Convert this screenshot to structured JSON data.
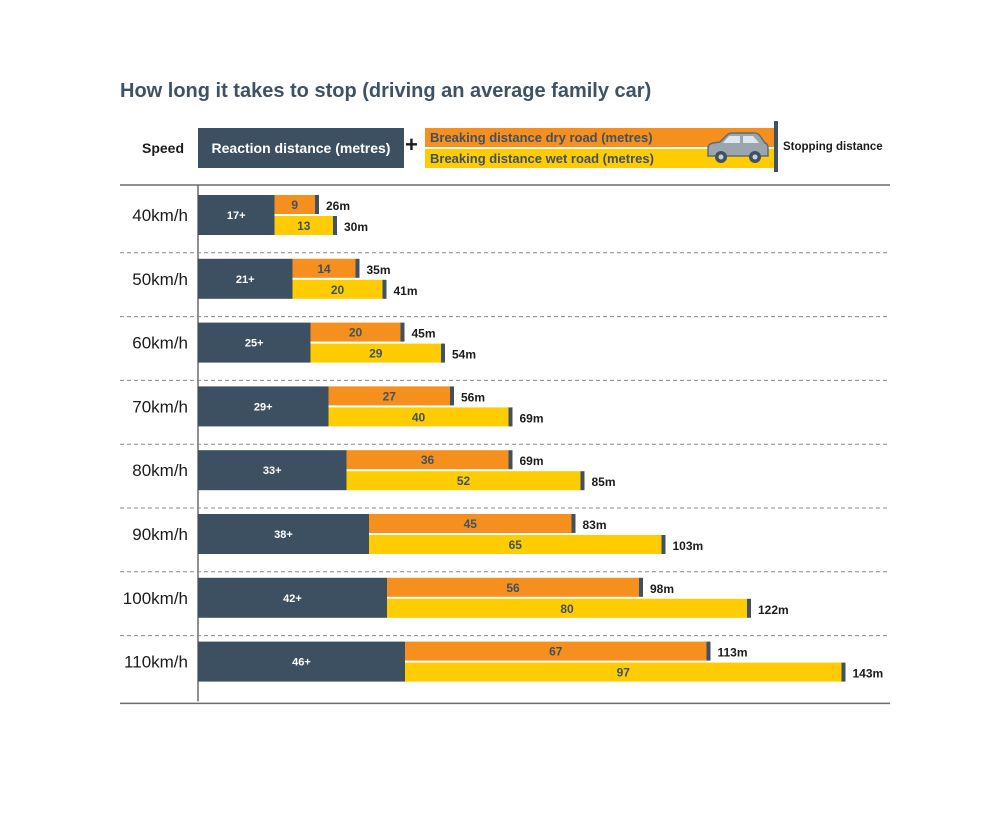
{
  "title": "How long it takes to stop (driving an average family car)",
  "legend": {
    "speed": "Speed",
    "reaction": "Reaction distance (metres)",
    "plus": "+",
    "dry": "Breaking distance dry road (metres)",
    "wet": "Breaking distance wet road (metres)",
    "stopping": "Stopping distance",
    "car_icon": "car-icon"
  },
  "colors": {
    "reaction": "#3d5062",
    "dry": "#f5901e",
    "wet": "#fecc00",
    "marker": "#3e5264",
    "text_dark": "#1b1b1b",
    "label_dark": "#3e5264"
  },
  "chart_data": {
    "type": "bar",
    "title": "How long it takes to stop (driving an average family car)",
    "categories": [
      "40km/h",
      "50km/h",
      "60km/h",
      "70km/h",
      "80km/h",
      "90km/h",
      "100km/h",
      "110km/h"
    ],
    "series": [
      {
        "name": "Reaction distance (metres)",
        "values": [
          17,
          21,
          25,
          29,
          33,
          38,
          42,
          46
        ],
        "labels": [
          "17+",
          "21+",
          "25+",
          "29+",
          "33+",
          "38+",
          "42+",
          "46+"
        ]
      },
      {
        "name": "Breaking distance dry road (metres)",
        "values": [
          9,
          14,
          20,
          27,
          36,
          45,
          56,
          67
        ],
        "labels": [
          "9",
          "14",
          "20",
          "27",
          "36",
          "45",
          "56",
          "67"
        ]
      },
      {
        "name": "Breaking distance wet road (metres)",
        "values": [
          13,
          20,
          29,
          40,
          52,
          65,
          80,
          97
        ],
        "labels": [
          "13",
          "20",
          "29",
          "40",
          "52",
          "65",
          "80",
          "97"
        ]
      }
    ],
    "stopping_dry": [
      "26m",
      "35m",
      "45m",
      "56m",
      "69m",
      "83m",
      "98m",
      "113m"
    ],
    "stopping_wet": [
      "30m",
      "41m",
      "54m",
      "69m",
      "85m",
      "103m",
      "122m",
      "143m"
    ],
    "xlim": [
      0,
      150
    ],
    "layout": "horizontal stacked"
  }
}
